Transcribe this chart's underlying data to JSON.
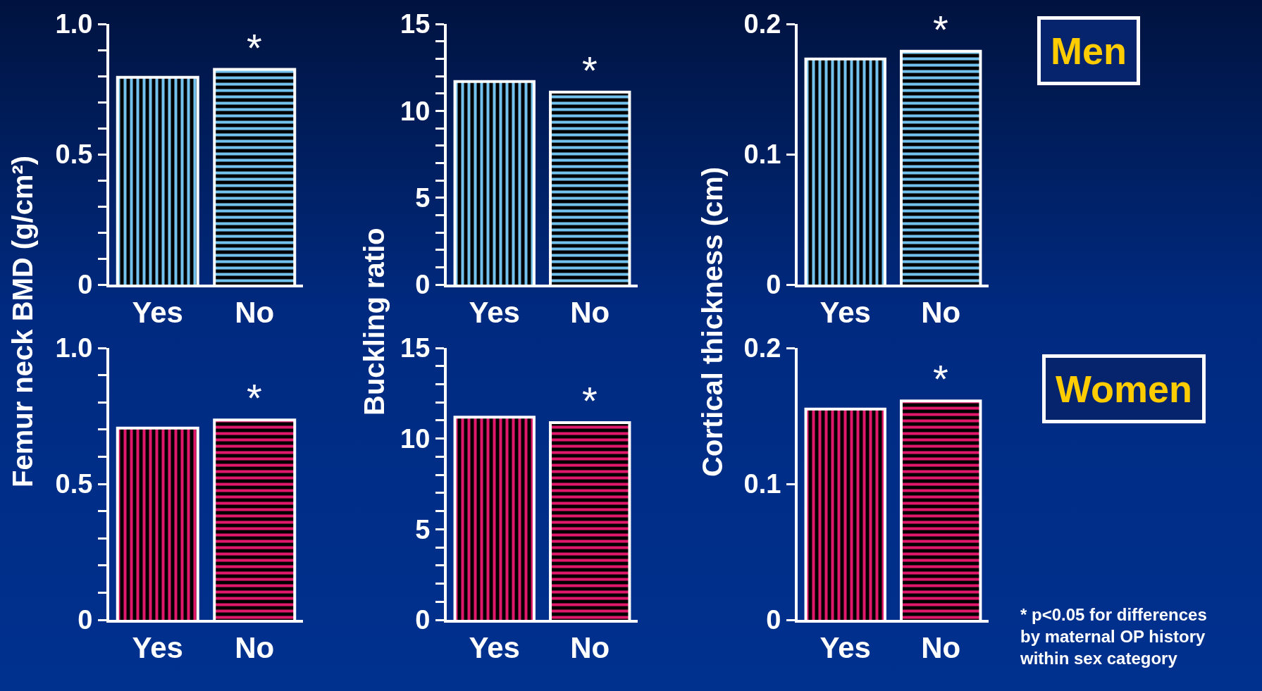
{
  "chart_data": [
    {
      "type": "bar",
      "ylabel": "Femur neck BMD (g/cm²)",
      "categories": [
        "Yes",
        "No"
      ],
      "values": [
        0.79,
        0.82
      ],
      "color": "#73c2ee",
      "ylim": [
        0,
        1
      ],
      "yticks": [
        0,
        {
          "value": 0.1,
          "label": null
        },
        {
          "value": 0.2,
          "label": null
        },
        {
          "value": 0.3,
          "label": null
        },
        {
          "value": 0.4,
          "label": null
        },
        0.5,
        {
          "value": 0.6,
          "label": null
        },
        {
          "value": 0.7,
          "label": null
        },
        {
          "value": 0.8,
          "label": null
        },
        {
          "value": 0.9,
          "label": null
        },
        {
          "value": 1,
          "label": "1.0"
        }
      ],
      "annotations": [
        {
          "text": "*",
          "x": "No",
          "y": 0.82
        }
      ]
    },
    {
      "type": "bar",
      "ylabel": "Buckling ratio",
      "categories": [
        "Yes",
        "No"
      ],
      "values": [
        11.6,
        11.0
      ],
      "color": "#73c2ee",
      "ylim": [
        0,
        15
      ],
      "yticks": [
        0,
        {
          "value": 1,
          "label": null
        },
        {
          "value": 2,
          "label": null
        },
        {
          "value": 3,
          "label": null
        },
        {
          "value": 4,
          "label": null
        },
        5,
        {
          "value": 6,
          "label": null
        },
        {
          "value": 7,
          "label": null
        },
        {
          "value": 8,
          "label": null
        },
        {
          "value": 9,
          "label": null
        },
        10,
        {
          "value": 11,
          "label": null
        },
        {
          "value": 12,
          "label": null
        },
        {
          "value": 13,
          "label": null
        },
        {
          "value": 14,
          "label": null
        },
        15
      ],
      "annotations": [
        {
          "text": "*",
          "x": "No",
          "y": 11.0
        }
      ]
    },
    {
      "type": "bar",
      "ylabel": "Cortical thickness (cm)",
      "categories": [
        "Yes",
        "No"
      ],
      "values": [
        0.172,
        0.178
      ],
      "color": "#73c2ee",
      "ylim": [
        0,
        0.2
      ],
      "yticks": [
        0,
        0.1,
        0.2
      ],
      "annotations": [
        {
          "text": "*",
          "x": "No",
          "y": 0.178
        },
        "Men"
      ]
    },
    {
      "type": "bar",
      "categories": [
        "Yes",
        "No"
      ],
      "values": [
        0.7,
        0.73
      ],
      "color": "#e0186c",
      "ylim": [
        0,
        1
      ],
      "yticks": [
        0,
        {
          "value": 0.1,
          "label": null
        },
        {
          "value": 0.2,
          "label": null
        },
        {
          "value": 0.3,
          "label": null
        },
        {
          "value": 0.4,
          "label": null
        },
        0.5,
        {
          "value": 0.6,
          "label": null
        },
        {
          "value": 0.7,
          "label": null
        },
        {
          "value": 0.8,
          "label": null
        },
        {
          "value": 0.9,
          "label": null
        },
        {
          "value": 1,
          "label": "1.0"
        }
      ],
      "annotations": [
        {
          "text": "*",
          "x": "No",
          "y": 0.73
        }
      ]
    },
    {
      "type": "bar",
      "categories": [
        "Yes",
        "No"
      ],
      "values": [
        11.1,
        10.8
      ],
      "color": "#e0186c",
      "ylim": [
        0,
        15
      ],
      "yticks": [
        0,
        {
          "value": 1,
          "label": null
        },
        {
          "value": 2,
          "label": null
        },
        {
          "value": 3,
          "label": null
        },
        {
          "value": 4,
          "label": null
        },
        5,
        {
          "value": 6,
          "label": null
        },
        {
          "value": 7,
          "label": null
        },
        {
          "value": 8,
          "label": null
        },
        {
          "value": 9,
          "label": null
        },
        10,
        {
          "value": 11,
          "label": null
        },
        {
          "value": 12,
          "label": null
        },
        {
          "value": 13,
          "label": null
        },
        {
          "value": 14,
          "label": null
        },
        15
      ],
      "annotations": [
        {
          "text": "*",
          "x": "No",
          "y": 10.8
        }
      ]
    },
    {
      "type": "bar",
      "categories": [
        "Yes",
        "No"
      ],
      "values": [
        0.154,
        0.16
      ],
      "color": "#e0186c",
      "ylim": [
        0,
        0.2
      ],
      "yticks": [
        0,
        0.1,
        0.2
      ],
      "annotations": [
        {
          "text": "*",
          "x": "No",
          "y": 0.16
        },
        "Women",
        "* p<0.05 for differences\nby maternal OP history\nwithin sex category"
      ]
    }
  ]
}
